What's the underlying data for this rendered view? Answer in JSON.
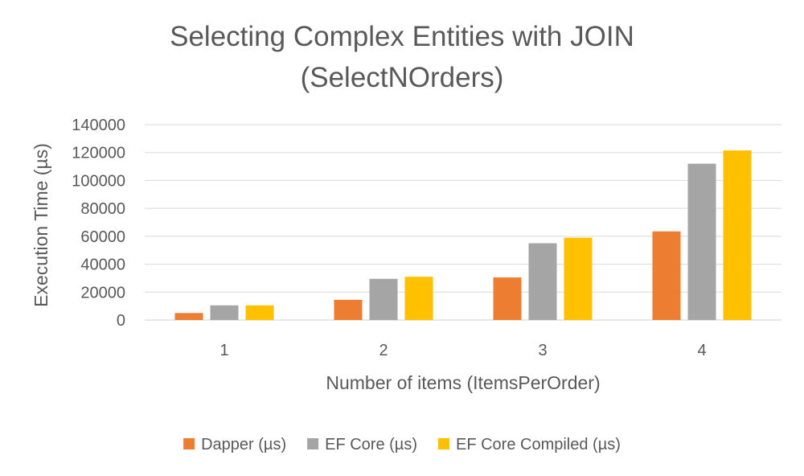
{
  "chart_data": {
    "type": "bar",
    "title": "Selecting Complex Entities with JOIN",
    "subtitle": "(SelectNOrders)",
    "xlabel": "Number of items (ItemsPerOrder)",
    "ylabel": "Execution Time (µs)",
    "categories": [
      "1",
      "2",
      "3",
      "4"
    ],
    "ylim": [
      0,
      140000
    ],
    "yticks": [
      0,
      20000,
      40000,
      60000,
      80000,
      100000,
      120000,
      140000
    ],
    "ytick_labels": [
      "0",
      "20000",
      "40000",
      "60000",
      "80000",
      "100000",
      "120000",
      "140000"
    ],
    "grid": true,
    "legend_position": "bottom",
    "series": [
      {
        "name": "Dapper (µs)",
        "color": "#ed7d31",
        "values": [
          5000,
          14500,
          30500,
          63500
        ]
      },
      {
        "name": "EF Core (µs)",
        "color": "#a5a5a5",
        "values": [
          10500,
          29500,
          55000,
          112000
        ]
      },
      {
        "name": "EF Core Compiled (µs)",
        "color": "#ffc000",
        "values": [
          10500,
          31000,
          59000,
          121500
        ]
      }
    ]
  }
}
